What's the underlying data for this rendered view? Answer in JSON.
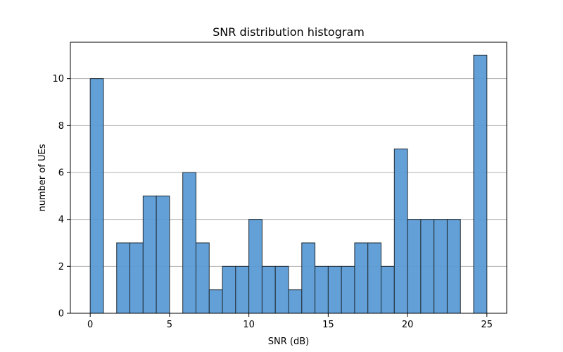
{
  "chart_data": {
    "type": "bar",
    "title": "SNR distribution histogram",
    "xlabel": "SNR (dB)",
    "ylabel": "number of UEs",
    "xlim": [
      -1.25,
      26.25
    ],
    "ylim": [
      0,
      11.55
    ],
    "xticks": [
      0,
      5,
      10,
      15,
      20,
      25
    ],
    "yticks": [
      0,
      2,
      4,
      6,
      8,
      10
    ],
    "grid": "y",
    "bin_width": 0.8333,
    "bins": [
      {
        "x0": 0.0,
        "value": 10
      },
      {
        "x0": 0.8333,
        "value": 0
      },
      {
        "x0": 1.6667,
        "value": 3
      },
      {
        "x0": 2.5,
        "value": 3
      },
      {
        "x0": 3.3333,
        "value": 5
      },
      {
        "x0": 4.1667,
        "value": 5
      },
      {
        "x0": 5.0,
        "value": 0
      },
      {
        "x0": 5.8333,
        "value": 6
      },
      {
        "x0": 6.6667,
        "value": 3
      },
      {
        "x0": 7.5,
        "value": 1
      },
      {
        "x0": 8.3333,
        "value": 2
      },
      {
        "x0": 9.1667,
        "value": 2
      },
      {
        "x0": 10.0,
        "value": 4
      },
      {
        "x0": 10.8333,
        "value": 2
      },
      {
        "x0": 11.6667,
        "value": 2
      },
      {
        "x0": 12.5,
        "value": 1
      },
      {
        "x0": 13.3333,
        "value": 3
      },
      {
        "x0": 14.1667,
        "value": 2
      },
      {
        "x0": 15.0,
        "value": 2
      },
      {
        "x0": 15.8333,
        "value": 2
      },
      {
        "x0": 16.6667,
        "value": 3
      },
      {
        "x0": 17.5,
        "value": 3
      },
      {
        "x0": 18.3333,
        "value": 2
      },
      {
        "x0": 19.1667,
        "value": 7
      },
      {
        "x0": 20.0,
        "value": 4
      },
      {
        "x0": 20.8333,
        "value": 4
      },
      {
        "x0": 21.6667,
        "value": 4
      },
      {
        "x0": 22.5,
        "value": 4
      },
      {
        "x0": 23.3333,
        "value": 0
      },
      {
        "x0": 24.1667,
        "value": 11
      }
    ],
    "colors": {
      "bar_fill": "#5b9bd5",
      "bar_edge": "#1f2a33",
      "grid": "#b0b0b0",
      "axis": "#000000"
    }
  }
}
